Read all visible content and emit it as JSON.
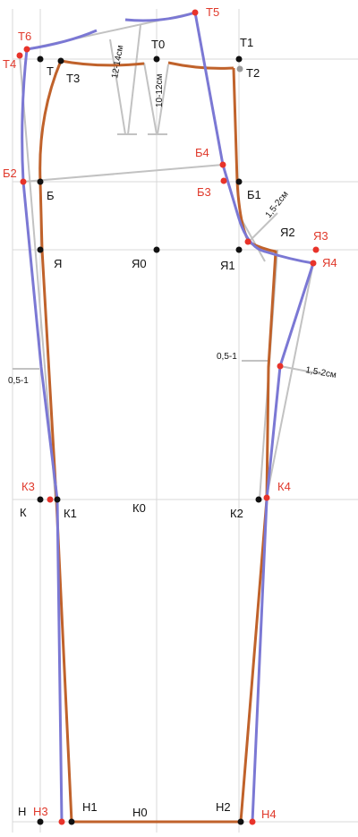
{
  "colors": {
    "grid": "#d9d9d9",
    "construction": "#c2c2c2",
    "front": "#c0622b",
    "back": "#7b78d4",
    "point_black": "#111111",
    "point_red": "#e8332a",
    "label_black": "#111111",
    "label_red": "#e0392b"
  },
  "points": {
    "T": "Т",
    "T0": "Т0",
    "T1": "Т1",
    "T2": "Т2",
    "T3": "Т3",
    "T4": "Т4",
    "T5": "Т5",
    "T6": "Т6",
    "B": "Б",
    "B1": "Б1",
    "B2": "Б2",
    "B3": "Б3",
    "B4": "Б4",
    "Ya": "Я",
    "Ya0": "Я0",
    "Ya1": "Я1",
    "Ya2": "Я2",
    "Ya3": "Я3",
    "Ya4": "Я4",
    "K": "К",
    "K0": "К0",
    "K1": "К1",
    "K2": "К2",
    "K3": "К3",
    "K4": "К4",
    "N": "Н",
    "N0": "Н0",
    "N1": "Н1",
    "N2": "Н2",
    "N3": "Н3",
    "N4": "Н4"
  },
  "annotations": {
    "dart_back": "12-14см",
    "dart_front": "10-12см",
    "crotch_curve": "1,5-2см",
    "side_left": "0,5-1",
    "side_right": "0,5-1",
    "back_inseam": "1,5-2см"
  }
}
